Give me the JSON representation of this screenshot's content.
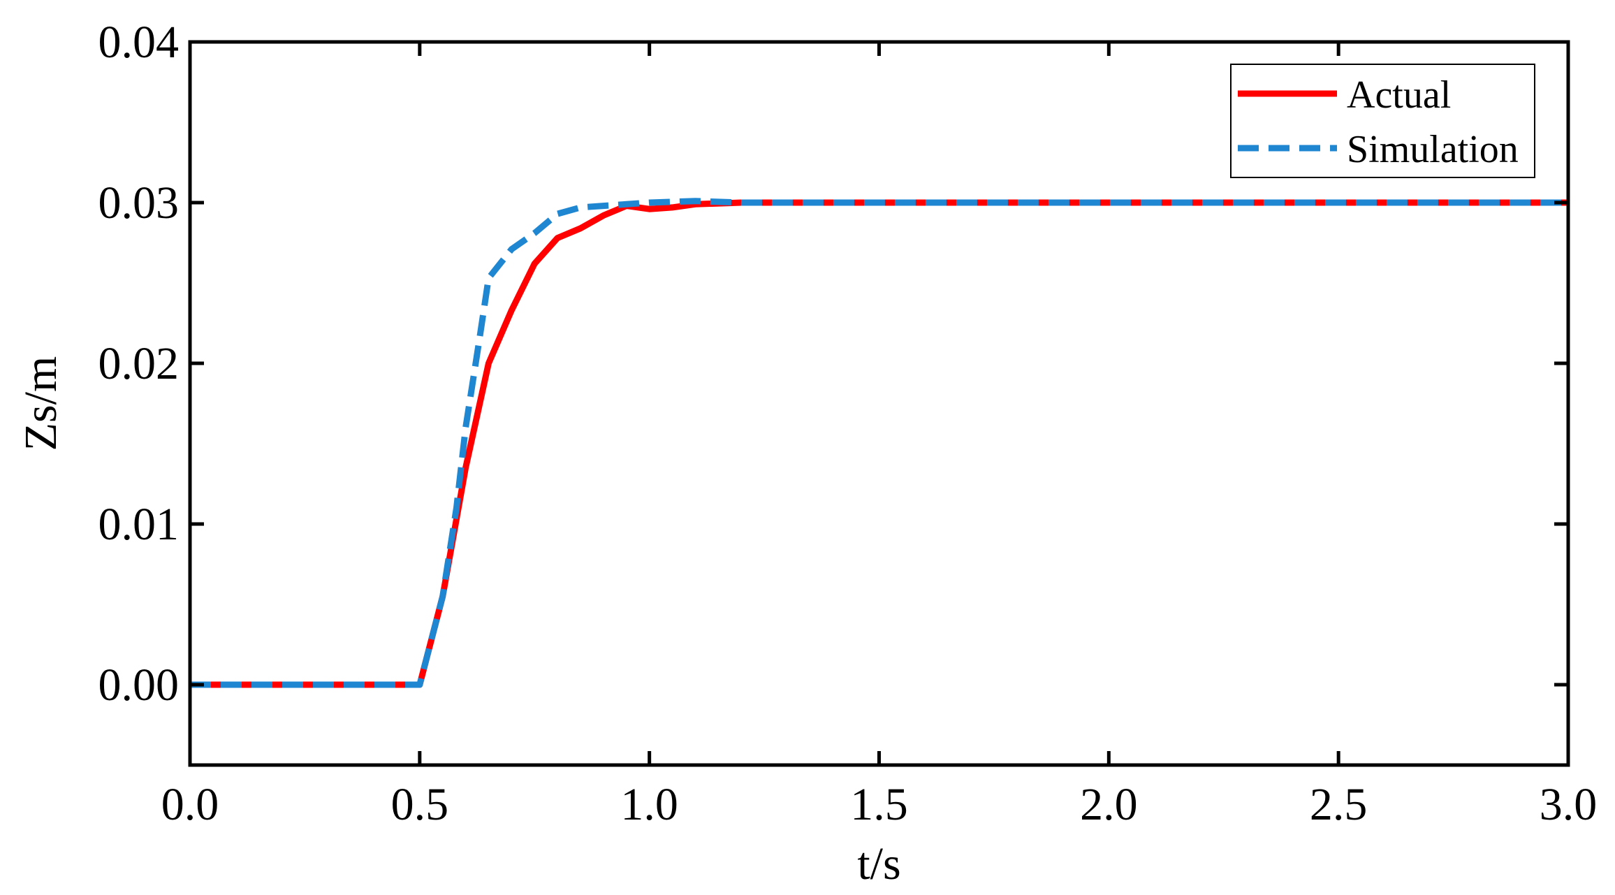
{
  "chart_data": {
    "type": "line",
    "title": "",
    "xlabel": "t/s",
    "ylabel": "Zs/m",
    "xlim": [
      0.0,
      3.0
    ],
    "ylim": [
      -0.005,
      0.04
    ],
    "x_ticks": [
      0.0,
      0.5,
      1.0,
      1.5,
      2.0,
      2.5,
      3.0
    ],
    "x_tick_labels": [
      "0.0",
      "0.5",
      "1.0",
      "1.5",
      "2.0",
      "2.5",
      "3.0"
    ],
    "y_ticks": [
      0.0,
      0.01,
      0.02,
      0.03,
      0.04
    ],
    "y_tick_labels": [
      "0.00",
      "0.01",
      "0.02",
      "0.03",
      "0.04"
    ],
    "grid": false,
    "legend": {
      "position": "top-right"
    },
    "series": [
      {
        "name": "Actual",
        "color": "#ff0000",
        "style": "solid",
        "x": [
          0.0,
          0.5,
          0.55,
          0.6,
          0.65,
          0.7,
          0.75,
          0.8,
          0.85,
          0.9,
          0.95,
          1.0,
          1.05,
          1.1,
          1.2,
          1.5,
          2.0,
          2.5,
          3.0
        ],
        "y": [
          0.0,
          0.0,
          0.0055,
          0.0135,
          0.02,
          0.0233,
          0.0262,
          0.0278,
          0.0284,
          0.0292,
          0.0298,
          0.0296,
          0.0297,
          0.0299,
          0.03,
          0.03,
          0.03,
          0.03,
          0.03
        ]
      },
      {
        "name": "Simulation",
        "color": "#1f86d1",
        "style": "dashed",
        "x": [
          0.0,
          0.5,
          0.55,
          0.58,
          0.6,
          0.63,
          0.65,
          0.7,
          0.75,
          0.8,
          0.85,
          0.9,
          0.95,
          1.0,
          1.1,
          1.2,
          1.5,
          2.0,
          2.5,
          3.0
        ],
        "y": [
          0.0,
          0.0,
          0.0055,
          0.011,
          0.016,
          0.0215,
          0.0253,
          0.0271,
          0.0281,
          0.0293,
          0.0297,
          0.0298,
          0.0299,
          0.03,
          0.0301,
          0.03,
          0.03,
          0.03,
          0.03,
          0.03
        ]
      }
    ]
  }
}
